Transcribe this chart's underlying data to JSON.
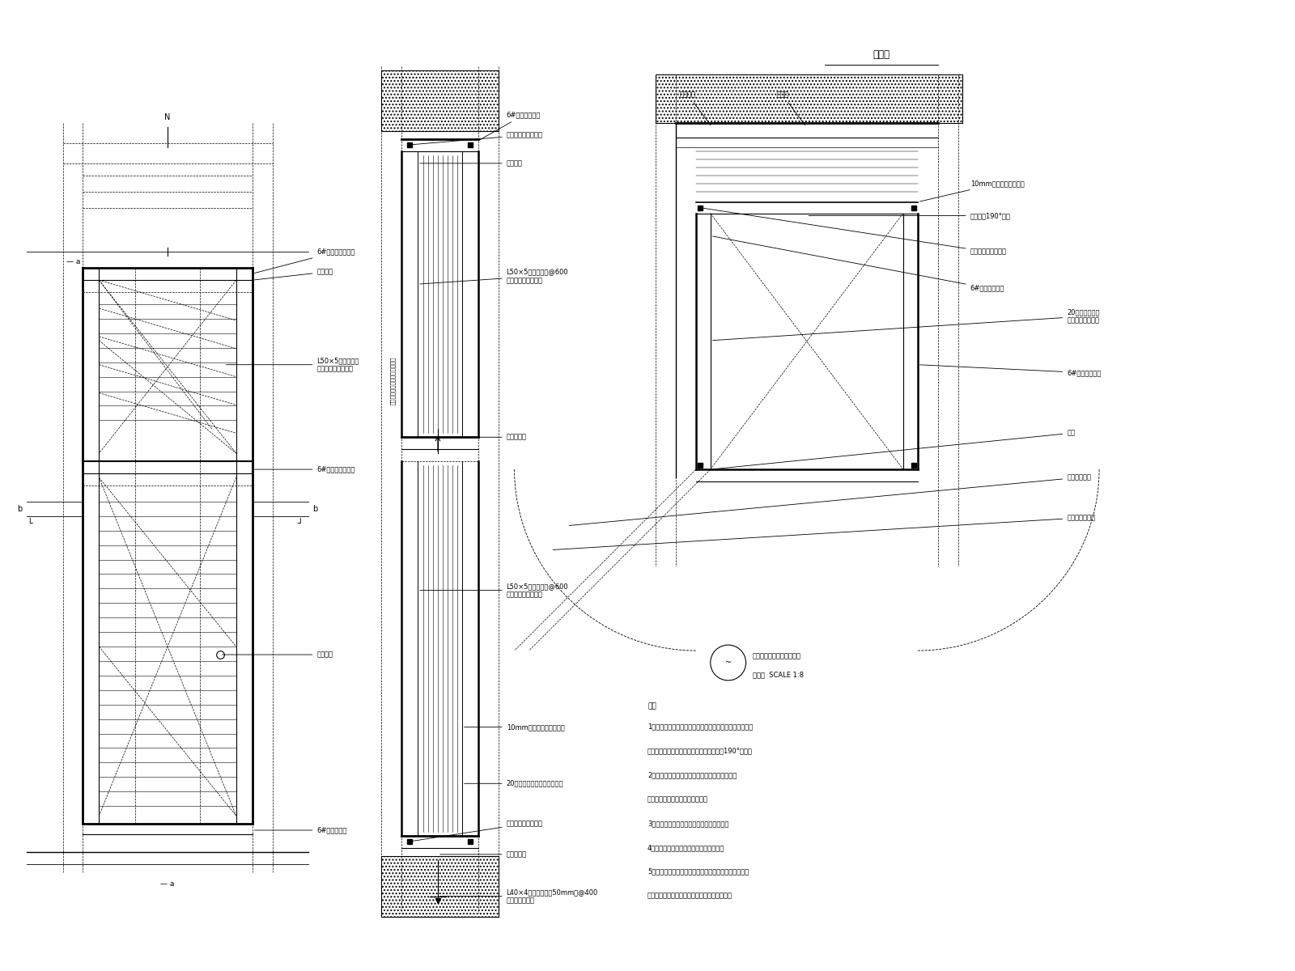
{
  "bg_color": "#ffffff",
  "line_color": "#000000",
  "fig_width": 16.0,
  "fig_height": 12.0,
  "font_size": 6.0,
  "font_size_small": 5.5,
  "font_size_title": 8.5,
  "notes": [
    "注：",
    "1、管井门石材暗门高度根据设计方案确定并保证防火门能",
    "自由开启，石材暗门开启应保证管井防火门190°开启。",
    "2、如管井防火门为双开门时，石材暗门也应该为",
    "双开石材暗门，做法参考单扇门。",
    "3、门钢钡架靠向龙骨节点至少加一道斜撑。",
    "4、图中标注的钢龙骨尺寸均为最小尺寸。",
    "5、司时应严格执行《万达酒店管井门节点工艺标准》、",
    "《万达酒店石材质量管控标准》中的相关规定。"
  ]
}
